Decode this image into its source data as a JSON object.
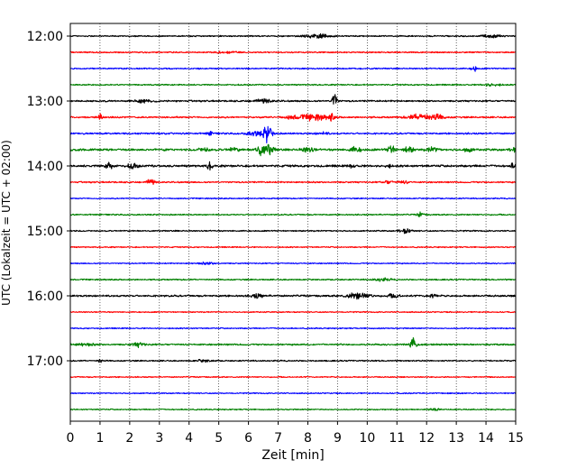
{
  "chart_data": {
    "type": "line",
    "title": "",
    "xlabel": "Zeit  [min]",
    "ylabel": "UTC (Lokalzeit = UTC + 02:00)",
    "xlim": [
      0,
      15
    ],
    "xticks": [
      "0",
      "1",
      "2",
      "3",
      "4",
      "5",
      "6",
      "7",
      "8",
      "9",
      "10",
      "11",
      "12",
      "13",
      "14",
      "15"
    ],
    "yticks": [
      "12:00",
      "13:00",
      "14:00",
      "15:00",
      "16:00",
      "17:00"
    ],
    "trace_interval_min": 15,
    "first_trace": "12:00",
    "grid": "vertical-dotted",
    "legend": "none",
    "trace_colors": [
      "#000000",
      "#ff0000",
      "#0000ff",
      "#008000"
    ],
    "traces": [
      {
        "start": "12:00",
        "color": "#000000",
        "noise": 0.8,
        "events": [
          {
            "t": 8.3,
            "a": 2.5,
            "w": 0.4
          },
          {
            "t": 14.2,
            "a": 2.0,
            "w": 0.3
          }
        ]
      },
      {
        "start": "12:15",
        "color": "#ff0000",
        "noise": 0.8,
        "events": [
          {
            "t": 5.2,
            "a": 1.5,
            "w": 0.3
          }
        ]
      },
      {
        "start": "12:30",
        "color": "#0000ff",
        "noise": 0.8,
        "events": [
          {
            "t": 13.6,
            "a": 4.5,
            "w": 0.08
          }
        ]
      },
      {
        "start": "12:45",
        "color": "#008000",
        "noise": 0.8,
        "events": [
          {
            "t": 14.2,
            "a": 1.5,
            "w": 0.3
          }
        ]
      },
      {
        "start": "13:00",
        "color": "#000000",
        "noise": 1.0,
        "events": [
          {
            "t": 8.9,
            "a": 13,
            "w": 0.08
          },
          {
            "t": 2.5,
            "a": 1.8,
            "w": 0.3
          },
          {
            "t": 6.5,
            "a": 2.0,
            "w": 0.3
          }
        ]
      },
      {
        "start": "13:15",
        "color": "#ff0000",
        "noise": 1.0,
        "events": [
          {
            "t": 1.0,
            "a": 5,
            "w": 0.06
          },
          {
            "t": 8.2,
            "a": 3.5,
            "w": 0.5
          },
          {
            "t": 8.8,
            "a": 4,
            "w": 0.08
          },
          {
            "t": 11.8,
            "a": 4,
            "w": 0.4
          },
          {
            "t": 12.4,
            "a": 2.5,
            "w": 0.2
          },
          {
            "t": 7.5,
            "a": 1.5,
            "w": 0.3
          }
        ]
      },
      {
        "start": "13:30",
        "color": "#0000ff",
        "noise": 1.0,
        "events": [
          {
            "t": 6.65,
            "a": 11,
            "w": 0.15
          },
          {
            "t": 6.2,
            "a": 3,
            "w": 0.25
          },
          {
            "t": 4.7,
            "a": 2,
            "w": 0.1
          },
          {
            "t": 8.5,
            "a": 1.5,
            "w": 0.2
          }
        ]
      },
      {
        "start": "13:45",
        "color": "#008000",
        "noise": 1.3,
        "events": [
          {
            "t": 6.4,
            "a": 6,
            "w": 0.15
          },
          {
            "t": 6.7,
            "a": 6,
            "w": 0.15
          },
          {
            "t": 8.0,
            "a": 3,
            "w": 0.2
          },
          {
            "t": 9.6,
            "a": 3,
            "w": 0.2
          },
          {
            "t": 10.8,
            "a": 6,
            "w": 0.12
          },
          {
            "t": 11.4,
            "a": 4,
            "w": 0.15
          },
          {
            "t": 12.2,
            "a": 2.5,
            "w": 0.2
          },
          {
            "t": 13.4,
            "a": 3,
            "w": 0.15
          },
          {
            "t": 14.9,
            "a": 4,
            "w": 0.08
          },
          {
            "t": 4.5,
            "a": 2,
            "w": 0.2
          },
          {
            "t": 5.5,
            "a": 2,
            "w": 0.2
          }
        ]
      },
      {
        "start": "14:00",
        "color": "#000000",
        "noise": 1.3,
        "events": [
          {
            "t": 1.3,
            "a": 4,
            "w": 0.15
          },
          {
            "t": 2.1,
            "a": 3,
            "w": 0.15
          },
          {
            "t": 4.7,
            "a": 5,
            "w": 0.08
          },
          {
            "t": 9.5,
            "a": 2.5,
            "w": 0.08
          },
          {
            "t": 10.7,
            "a": 2,
            "w": 0.1
          },
          {
            "t": 14.9,
            "a": 2.5,
            "w": 0.08
          }
        ]
      },
      {
        "start": "14:15",
        "color": "#ff0000",
        "noise": 0.9,
        "events": [
          {
            "t": 2.7,
            "a": 4,
            "w": 0.12
          },
          {
            "t": 10.7,
            "a": 2,
            "w": 0.15
          },
          {
            "t": 11.2,
            "a": 1.5,
            "w": 0.2
          }
        ]
      },
      {
        "start": "14:30",
        "color": "#0000ff",
        "noise": 0.7,
        "events": []
      },
      {
        "start": "14:45",
        "color": "#008000",
        "noise": 0.8,
        "events": [
          {
            "t": 11.8,
            "a": 3,
            "w": 0.1
          }
        ]
      },
      {
        "start": "15:00",
        "color": "#000000",
        "noise": 0.8,
        "events": [
          {
            "t": 11.3,
            "a": 3,
            "w": 0.2
          }
        ]
      },
      {
        "start": "15:15",
        "color": "#ff0000",
        "noise": 0.7,
        "events": []
      },
      {
        "start": "15:30",
        "color": "#0000ff",
        "noise": 0.7,
        "events": [
          {
            "t": 4.6,
            "a": 1.2,
            "w": 0.3
          }
        ]
      },
      {
        "start": "15:45",
        "color": "#008000",
        "noise": 0.8,
        "events": [
          {
            "t": 10.5,
            "a": 1.5,
            "w": 0.3
          }
        ]
      },
      {
        "start": "16:00",
        "color": "#000000",
        "noise": 1.1,
        "events": [
          {
            "t": 6.3,
            "a": 2.5,
            "w": 0.2
          },
          {
            "t": 9.7,
            "a": 3.5,
            "w": 0.4
          },
          {
            "t": 10.9,
            "a": 2,
            "w": 0.2
          },
          {
            "t": 12.2,
            "a": 2,
            "w": 0.15
          }
        ]
      },
      {
        "start": "16:15",
        "color": "#ff0000",
        "noise": 0.7,
        "events": []
      },
      {
        "start": "16:30",
        "color": "#0000ff",
        "noise": 0.7,
        "events": []
      },
      {
        "start": "16:45",
        "color": "#008000",
        "noise": 1.0,
        "events": [
          {
            "t": 11.55,
            "a": 13,
            "w": 0.08
          },
          {
            "t": 2.3,
            "a": 2.5,
            "w": 0.2
          },
          {
            "t": 0.5,
            "a": 1.5,
            "w": 0.3
          }
        ]
      },
      {
        "start": "17:00",
        "color": "#000000",
        "noise": 0.8,
        "events": [
          {
            "t": 1.0,
            "a": 2.5,
            "w": 0.06
          },
          {
            "t": 4.5,
            "a": 1.2,
            "w": 0.3
          }
        ]
      },
      {
        "start": "17:15",
        "color": "#ff0000",
        "noise": 0.7,
        "events": []
      },
      {
        "start": "17:30",
        "color": "#0000ff",
        "noise": 0.7,
        "events": []
      },
      {
        "start": "17:45",
        "color": "#008000",
        "noise": 0.7,
        "events": [
          {
            "t": 12.3,
            "a": 1.2,
            "w": 0.2
          }
        ]
      }
    ]
  }
}
